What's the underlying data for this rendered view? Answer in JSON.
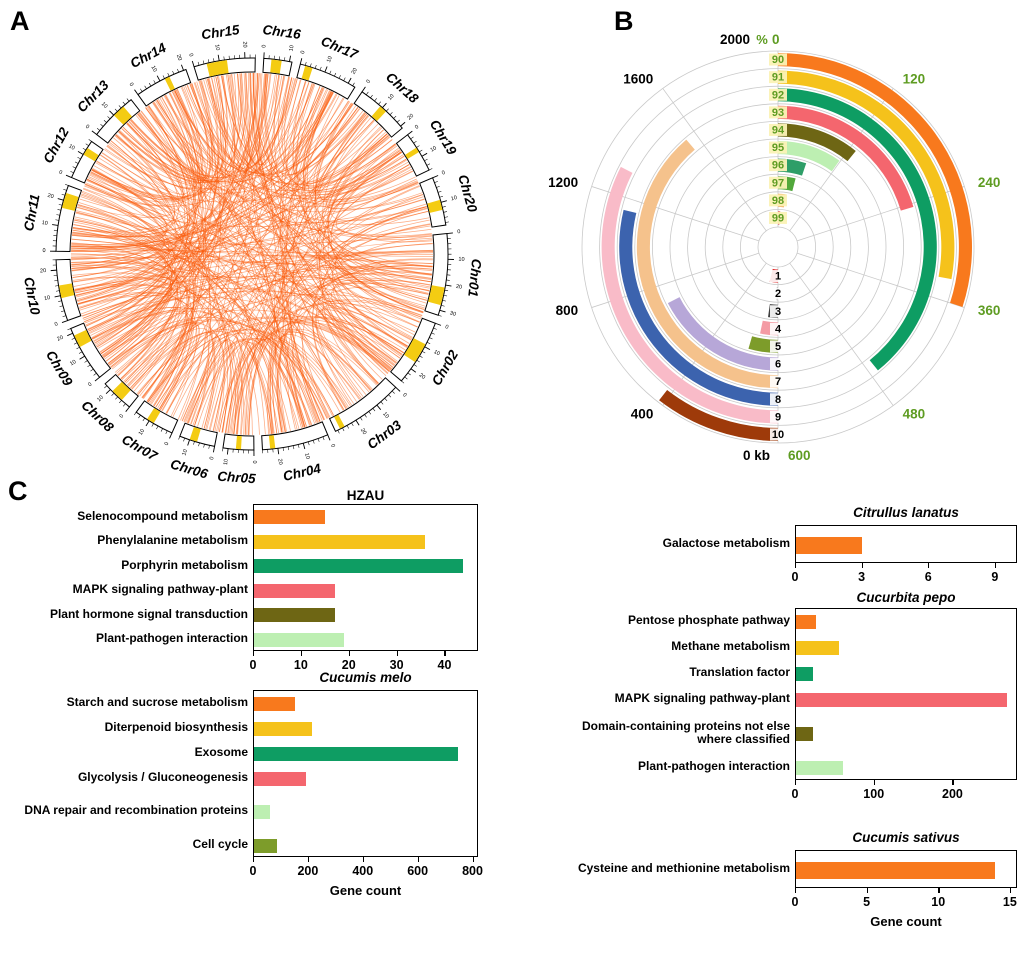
{
  "panels": {
    "a_label": "A",
    "b_label": "B",
    "c_label": "C"
  },
  "colors": {
    "orange": "#F8791D",
    "yellow": "#F5C21B",
    "seagreen": "#0E9D63",
    "salmon": "#F4666E",
    "darkolive": "#6E6614",
    "palegreen": "#BDEFB2",
    "olive": "#7D9C2A",
    "link_orange": "#FB5C0C",
    "ideogram_yellow": "#F4CC12",
    "scale_green": "#5E9C22"
  },
  "chart_data": [
    {
      "id": "circos",
      "panel": "A",
      "type": "chord",
      "ideogram_fill": "#FFFFFF",
      "yellow_fill": "#F4CC12",
      "tick_major": 10,
      "tick_minor": 2,
      "links": {
        "count": 430,
        "seed": 12345,
        "color": "#FB5C0C",
        "opacity": 0.5,
        "width": 0.75
      },
      "chromosomes": [
        {
          "name": "Chr01",
          "size": 32,
          "yellow": [
            [
              21,
              28
            ]
          ]
        },
        {
          "name": "Chr02",
          "size": 26,
          "yellow": [
            [
              9,
              17
            ]
          ]
        },
        {
          "name": "Chr03",
          "size": 29,
          "yellow": [
            [
              25,
              27
            ]
          ]
        },
        {
          "name": "Chr04",
          "size": 26,
          "yellow": [
            [
              21,
              23
            ]
          ]
        },
        {
          "name": "Chr05",
          "size": 12,
          "yellow": [
            [
              5,
              7
            ]
          ]
        },
        {
          "name": "Chr06",
          "size": 14,
          "yellow": [
            [
              7,
              10
            ]
          ]
        },
        {
          "name": "Chr07",
          "size": 16,
          "yellow": [
            [
              8,
              11
            ]
          ]
        },
        {
          "name": "Chr08",
          "size": 13,
          "yellow": [
            [
              4,
              9
            ]
          ]
        },
        {
          "name": "Chr09",
          "size": 22,
          "yellow": [
            [
              14,
              19
            ]
          ]
        },
        {
          "name": "Chr10",
          "size": 24,
          "yellow": [
            [
              9,
              14
            ]
          ]
        },
        {
          "name": "Chr11",
          "size": 26,
          "yellow": [
            [
              17,
              23
            ]
          ]
        },
        {
          "name": "Chr12",
          "size": 16,
          "yellow": [
            [
              10,
              13
            ]
          ]
        },
        {
          "name": "Chr13",
          "size": 19,
          "yellow": [
            [
              10,
              15
            ]
          ]
        },
        {
          "name": "Chr14",
          "size": 21,
          "yellow": [
            [
              12,
              14
            ]
          ]
        },
        {
          "name": "Chr15",
          "size": 24,
          "yellow": [
            [
              5,
              13
            ]
          ]
        },
        {
          "name": "Chr16",
          "size": 11,
          "yellow": [
            [
              3,
              7
            ]
          ]
        },
        {
          "name": "Chr17",
          "size": 23,
          "yellow": [
            [
              2,
              5
            ]
          ]
        },
        {
          "name": "Chr18",
          "size": 21,
          "yellow": [
            [
              9,
              12
            ]
          ]
        },
        {
          "name": "Chr19",
          "size": 16,
          "yellow": [
            [
              6,
              8
            ]
          ]
        },
        {
          "name": "Chr20",
          "size": 19,
          "yellow": [
            [
              9,
              13
            ]
          ]
        }
      ]
    },
    {
      "id": "polar",
      "panel": "B",
      "type": "polar_bar",
      "right_scale": {
        "symbol": "%",
        "max": 600,
        "ticks": [
          0,
          120,
          240,
          360,
          480,
          600
        ],
        "color": "#5E9C22"
      },
      "left_scale": {
        "unit": "kb",
        "max": 2000,
        "ticks": [
          0,
          400,
          800,
          1200,
          1600,
          2000
        ],
        "color": "#000000"
      },
      "rings": [
        {
          "right_label": "90",
          "right_value": 360,
          "right_color": "#F8791D",
          "left_label": "10",
          "left_value": 420,
          "left_color": "#9E3A0A"
        },
        {
          "right_label": "91",
          "right_value": 335,
          "right_color": "#F5C21B",
          "left_label": "9",
          "left_value": 1300,
          "left_color": "#F9BBC8"
        },
        {
          "right_label": "92",
          "right_value": 470,
          "right_color": "#0E9D63",
          "left_label": "8",
          "left_value": 1150,
          "left_color": "#3C63AE"
        },
        {
          "right_label": "93",
          "right_value": 245,
          "right_color": "#F4666E",
          "left_label": "7",
          "left_value": 1550,
          "left_color": "#F5C28C"
        },
        {
          "right_label": "94",
          "right_value": 130,
          "right_color": "#6E6614",
          "left_label": "6",
          "left_value": 700,
          "left_color": "#B7A7D8"
        },
        {
          "right_label": "95",
          "right_value": 118,
          "right_color": "#BDEFB2",
          "left_label": "5",
          "left_value": 180,
          "left_color": "#7D9C2A"
        },
        {
          "right_label": "96",
          "right_value": 62,
          "right_color": "#2E9E68",
          "left_label": "4",
          "left_value": 130,
          "left_color": "#F49BA4"
        },
        {
          "right_label": "97",
          "right_value": 48,
          "right_color": "#52A83B",
          "left_label": "3",
          "left_value": 90,
          "left_color": "#404040"
        },
        {
          "right_label": "98",
          "right_value": 28,
          "right_color": "#F2A65A",
          "left_label": "2",
          "left_value": 20,
          "left_color": "#9B9B9B"
        },
        {
          "right_label": "99",
          "right_value": 12,
          "right_color": "#DF2B2B",
          "left_label": "1",
          "left_value": 150,
          "left_color": "#DF2B2B"
        }
      ]
    },
    {
      "id": "hzau",
      "panel": "C",
      "type": "bar",
      "title": "HZAU",
      "title_italic": false,
      "categories": [
        "Selenocompound metabolism",
        "Phenylalanine metabolism",
        "Porphyrin metabolism",
        "MAPK signaling pathway-plant",
        "Plant hormone signal transduction",
        "Plant-pathogen interaction"
      ],
      "values": [
        15,
        36,
        44,
        17,
        17,
        19
      ],
      "colors": [
        "#F8791D",
        "#F5C21B",
        "#0E9D63",
        "#F4666E",
        "#6E6614",
        "#BDEFB2"
      ],
      "xticks": [
        0,
        10,
        20,
        30,
        40
      ],
      "xmax": 47,
      "xlabel": ""
    },
    {
      "id": "melo",
      "panel": "C",
      "type": "bar",
      "title": "Cucumis melo",
      "title_italic": true,
      "categories": [
        "Starch and sucrose metabolism",
        "Diterpenoid biosynthesis",
        "Exosome",
        "Glycolysis / Gluconeogenesis",
        "DNA repair and recombination proteins",
        "Cell cycle"
      ],
      "values": [
        150,
        215,
        750,
        190,
        60,
        85
      ],
      "colors": [
        "#F8791D",
        "#F5C21B",
        "#0E9D63",
        "#F4666E",
        "#BDEFB2",
        "#7D9C2A"
      ],
      "xticks": [
        0,
        200,
        400,
        600,
        800
      ],
      "xmax": 820,
      "xlabel": "Gene count"
    },
    {
      "id": "lanatus",
      "panel": "C",
      "type": "bar",
      "title": "Citrullus lanatus",
      "title_italic": true,
      "categories": [
        "Galactose metabolism"
      ],
      "values": [
        3
      ],
      "colors": [
        "#F8791D"
      ],
      "xticks": [
        0,
        3,
        6,
        9
      ],
      "xmax": 10,
      "xlabel": ""
    },
    {
      "id": "pepo",
      "panel": "C",
      "type": "bar",
      "title": "Cucurbita pepo",
      "title_italic": true,
      "categories": [
        "Pentose phosphate pathway",
        "Methane metabolism",
        "Translation factor",
        "MAPK signaling pathway-plant",
        "Domain-containing proteins not else where classified",
        "Plant-pathogen interaction"
      ],
      "values": [
        25,
        55,
        22,
        270,
        22,
        60
      ],
      "colors": [
        "#F8791D",
        "#F5C21B",
        "#0E9D63",
        "#F4666E",
        "#6E6614",
        "#BDEFB2"
      ],
      "xticks": [
        0,
        100,
        200
      ],
      "xmax": 282,
      "xlabel": ""
    },
    {
      "id": "sativus",
      "panel": "C",
      "type": "bar",
      "title": "Cucumis sativus",
      "title_italic": true,
      "categories": [
        "Cysteine and methionine metabolism"
      ],
      "values": [
        14
      ],
      "colors": [
        "#F8791D"
      ],
      "xticks": [
        0,
        5,
        10,
        15
      ],
      "xmax": 15.5,
      "xlabel": "Gene count"
    }
  ]
}
